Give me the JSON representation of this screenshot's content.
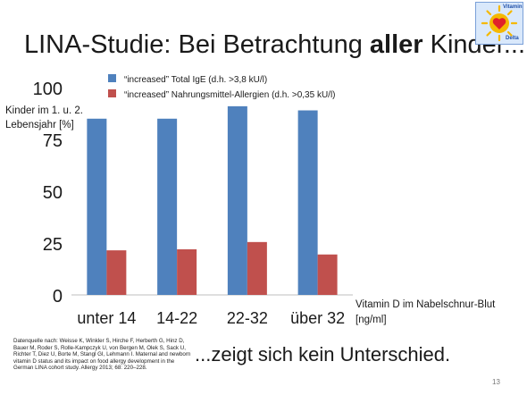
{
  "slide": {
    "title_prefix": "LINA-Studie: Bei Betrachtung ",
    "title_bold": "aller",
    "title_suffix": " Kinder...",
    "logo_top": "Vitamin",
    "logo_bottom": "Delta",
    "page_number": "13",
    "conclusion": "...zeigt sich kein Unterschied.",
    "source": "Datenquelle nach: Weisse K, Winkler S, Hirche F, Herberth G, Hinz D, Bauer M, Roder S, Rolle-Kampczyk U, von Bergen M, Olek S, Sack U, Richter T, Diez U, Borte M, Stangl GI, Lehmann I. Maternal and newborn vitamin D status and its impact on food allergy development in the German LINA cohort study. Allergy 2013; 68: 220–228."
  },
  "colors": {
    "series_ige": "#4f81bd",
    "series_food": "#c0504d",
    "logo_sun": "#f5b800",
    "logo_heart": "#e0202a"
  },
  "chart_data": {
    "type": "bar",
    "ylabel_lines": [
      "Kinder im 1. u. 2.",
      "Lebensjahr [%]"
    ],
    "xlabel_lines": [
      "Vitamin D im Nabelschnur-Blut",
      "[ng/ml]"
    ],
    "ylim": [
      0,
      100
    ],
    "yticks": [
      0,
      25,
      50,
      75,
      100
    ],
    "categories": [
      "unter 14",
      "14-22",
      "22-32",
      "über 32"
    ],
    "legend_position": "top",
    "series": [
      {
        "name": "“increased” Total IgE (d.h. >3,8 kU/l)",
        "color": "#4f81bd",
        "values": [
          85,
          85,
          91,
          89
        ]
      },
      {
        "name": "“increased” Nahrungsmittel-Allergien (d.h. >0,35 kU/l)",
        "color": "#c0504d",
        "values": [
          21.5,
          22,
          25.5,
          19.5
        ]
      }
    ]
  }
}
